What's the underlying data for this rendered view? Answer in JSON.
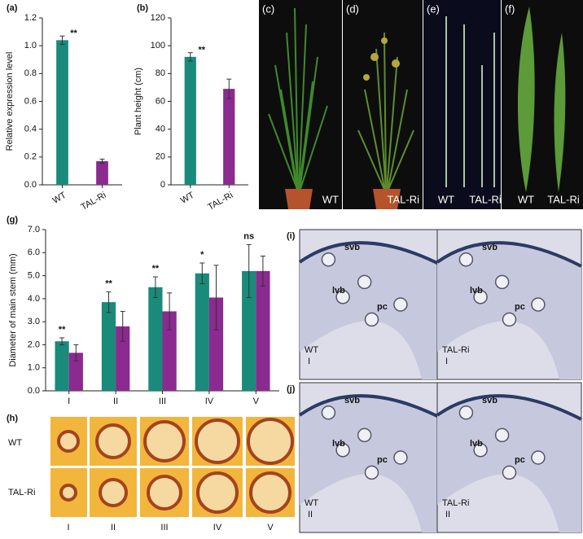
{
  "chart_data": [
    {
      "type": "bar",
      "panel_label": "(a)",
      "ylabel": "Relative expression level",
      "categories": [
        "WT",
        "TAL-Ri"
      ],
      "series": [
        {
          "color": "#1a8a7a",
          "values": [
            1.04,
            null
          ],
          "errors": [
            0.03,
            null
          ]
        },
        {
          "color": "#8b2a8f",
          "values": [
            null,
            0.17
          ],
          "errors": [
            null,
            0.015
          ]
        }
      ],
      "annotations": [
        "**",
        null
      ],
      "ylim": [
        0,
        1.2
      ],
      "yticks": [
        {
          "value": 0,
          "label": "0.0"
        },
        0.2,
        0.4,
        0.6,
        0.8,
        {
          "value": 1,
          "label": "1.0"
        },
        1.2
      ]
    },
    {
      "type": "bar",
      "panel_label": "(b)",
      "ylabel": "Plant height (cm)",
      "categories": [
        "WT",
        "TAL-Ri"
      ],
      "series": [
        {
          "color": "#1a8a7a",
          "values": [
            92,
            null
          ],
          "errors": [
            3,
            null
          ]
        },
        {
          "color": "#8b2a8f",
          "values": [
            null,
            69
          ],
          "errors": [
            null,
            7
          ]
        }
      ],
      "annotations": [
        "**",
        null
      ],
      "ylim": [
        0,
        120
      ],
      "yticks": [
        0,
        20,
        40,
        60,
        80,
        100,
        120
      ]
    },
    {
      "type": "bar",
      "panel_label": "(g)",
      "ylabel": "Diameter of main stem (mm)",
      "categories": [
        "I",
        "II",
        "III",
        "IV",
        "V"
      ],
      "series": [
        {
          "color": "#1a8a7a",
          "values": [
            2.15,
            3.85,
            4.5,
            5.1,
            5.2
          ],
          "errors": [
            0.15,
            0.45,
            0.45,
            0.45,
            1.15
          ]
        },
        {
          "color": "#8b2a8f",
          "values": [
            1.65,
            2.8,
            3.45,
            4.05,
            5.2
          ],
          "errors": [
            0.35,
            0.65,
            0.8,
            1.4,
            0.65
          ]
        }
      ],
      "annotations": [
        "**",
        "**",
        "**",
        "*",
        "ns"
      ],
      "ylim": [
        0,
        7
      ],
      "yticks": [
        {
          "value": 0,
          "label": "0.0"
        },
        {
          "value": 1,
          "label": "1.0"
        },
        {
          "value": 2,
          "label": "2.0"
        },
        {
          "value": 3,
          "label": "3.0"
        },
        {
          "value": 4,
          "label": "4.0"
        },
        {
          "value": 5,
          "label": "5.0"
        },
        {
          "value": 6,
          "label": "6.0"
        },
        {
          "value": 7,
          "label": "7.0"
        }
      ]
    }
  ],
  "panels": {
    "c": {
      "label": "(c)",
      "text": "WT"
    },
    "d": {
      "label": "(d)",
      "text": "TAL-Ri"
    },
    "e": {
      "label": "(e)",
      "texts": [
        "WT",
        "TAL-Ri"
      ]
    },
    "f": {
      "label": "(f)",
      "texts": [
        "WT",
        "TAL-Ri"
      ]
    },
    "h": {
      "label": "(h)",
      "rows": [
        "WT",
        "TAL-Ri"
      ],
      "columns": [
        "I",
        "II",
        "III",
        "IV",
        "V"
      ]
    },
    "i": {
      "label": "(i)",
      "left": {
        "tissues": [
          "svb",
          "lvb",
          "pc"
        ],
        "genotype": "WT",
        "stage": "I"
      },
      "right": {
        "tissues": [
          "svb",
          "lvb",
          "pc"
        ],
        "genotype": "TAL-Ri",
        "stage": "I"
      }
    },
    "j": {
      "label": "(j)",
      "left": {
        "tissues": [
          "svb",
          "lvb",
          "pc"
        ],
        "genotype": "WT",
        "stage": "II"
      },
      "right": {
        "tissues": [
          "svb",
          "lvb",
          "pc"
        ],
        "genotype": "TAL-Ri",
        "stage": "II"
      }
    }
  }
}
